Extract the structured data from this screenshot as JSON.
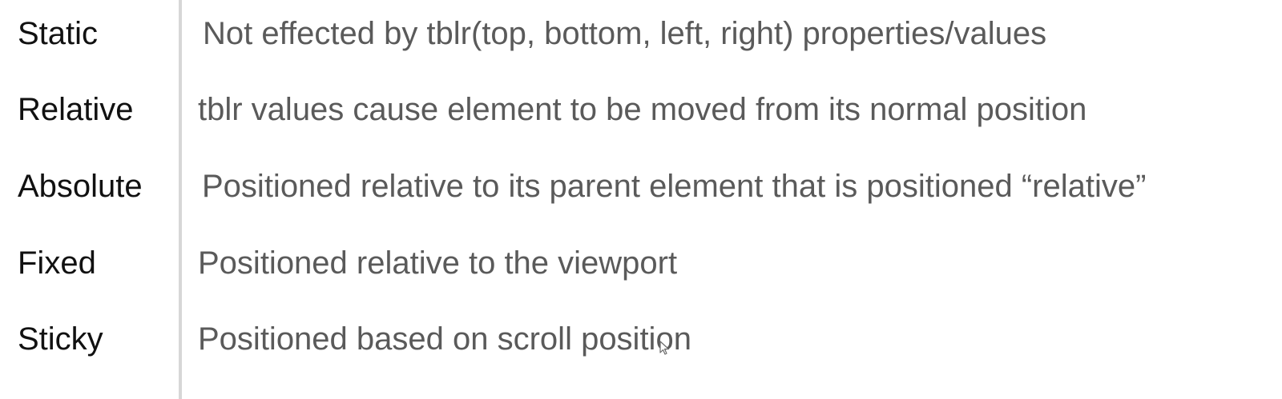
{
  "rows": [
    {
      "term": "Static",
      "description": "Not effected by tblr(top, bottom, left, right) properties/values"
    },
    {
      "term": "Relative",
      "description": "tblr values cause element to be moved from its normal position"
    },
    {
      "term": "Absolute",
      "description": "Positioned relative to its parent element that is positioned “relative”"
    },
    {
      "term": "Fixed",
      "description": "Positioned relative to the viewport"
    },
    {
      "term": "Sticky",
      "description": "Positioned based on scroll position"
    }
  ],
  "icons": {
    "cursor": "mouse-cursor-icon"
  }
}
